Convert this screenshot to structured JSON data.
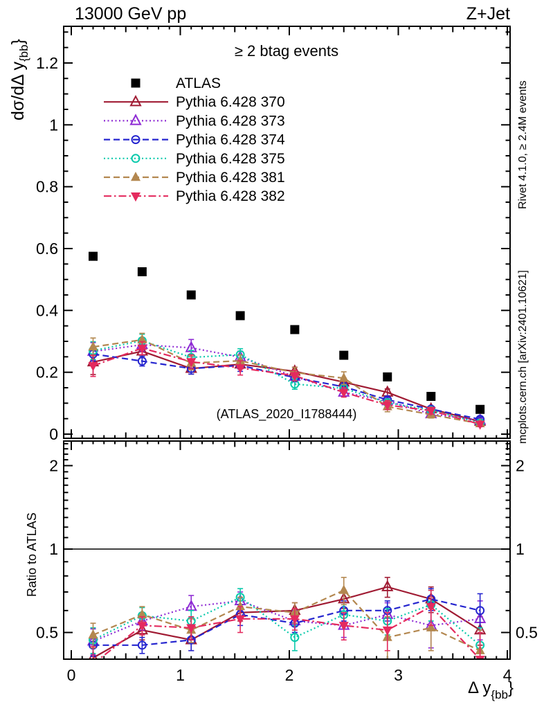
{
  "header": {
    "left_title": "13000 GeV pp",
    "right_title": "Z+Jet"
  },
  "side_notes": {
    "top": "Rivet 4.1.0, ≥ 2.4M events",
    "bottom": "mcplots.cern.ch [arXiv:2401.10621]"
  },
  "watermark": "(ATLAS_2020_I1788444)",
  "panel_labels": {
    "subtitle": "≥ 2 btag events",
    "ylabel_main": "dσ/dΔ y",
    "ylabel_sub": "{bb",
    "ylabel_close": "}",
    "ratio_ylabel": "Ratio to ATLAS",
    "xlabel_main": "Δ y",
    "xlabel_sub": "{bb",
    "xlabel_close": "}"
  },
  "chart_data": {
    "type": "line",
    "title": "≥ 2 btag events",
    "xlabel": "Δ y_{bb}}",
    "ylabel_top": "dσ/dΔ y_{bb}}",
    "ylabel_bottom": "Ratio to ATLAS",
    "x": [
      0.2,
      0.65,
      1.1,
      1.55,
      2.05,
      2.5,
      2.9,
      3.3,
      3.75
    ],
    "x_axis": {
      "range": [
        -0.07,
        4.03
      ],
      "major_ticks": [
        0,
        1,
        2,
        3,
        4
      ],
      "tick_labels": [
        "0",
        "1",
        "2",
        "3",
        "4"
      ],
      "minor_step": 0.1
    },
    "top_panel": {
      "scale": "linear",
      "y_range": [
        -0.013,
        1.32
      ],
      "major_ticks": [
        0,
        0.2,
        0.4,
        0.6,
        0.8,
        1.0,
        1.2
      ],
      "tick_labels": [
        "0",
        "0.2",
        "0.4",
        "0.6",
        "0.8",
        "1",
        "1.2"
      ],
      "minor_step": 0.05,
      "grid": false
    },
    "ratio_panel": {
      "scale": "log",
      "y_range": [
        0.4,
        2.46
      ],
      "major_ticks": [
        0.5,
        1,
        2
      ],
      "tick_labels": [
        "0.5",
        "1",
        "2"
      ],
      "minor_ticks": [
        0.4,
        0.6,
        0.7,
        0.8,
        0.9,
        1.1,
        1.2,
        1.3,
        1.4,
        1.5,
        1.6,
        1.7,
        1.8,
        1.9,
        2.1,
        2.2,
        2.3,
        2.4
      ],
      "ref_line": 1,
      "grid": false
    },
    "atlas": {
      "label": "ATLAS",
      "color": "#000000",
      "marker": "square-filled",
      "values": [
        0.575,
        0.525,
        0.45,
        0.383,
        0.338,
        0.255,
        0.185,
        0.122,
        0.08
      ]
    },
    "series": [
      {
        "label": "Pythia 6.428 370",
        "color": "#a01b33",
        "line": "solid",
        "marker": "triangle-open",
        "values": [
          0.233,
          0.268,
          0.212,
          0.226,
          0.203,
          0.168,
          0.135,
          0.081,
          0.041
        ],
        "ratio": [
          0.405,
          0.51,
          0.47,
          0.59,
          0.6,
          0.66,
          0.73,
          0.66,
          0.51
        ],
        "ratio_err": [
          0.07,
          0.04,
          0.04,
          0.04,
          0.04,
          0.05,
          0.06,
          0.07,
          0.06
        ]
      },
      {
        "label": "Pythia 6.428 373",
        "color": "#8e2bd4",
        "line": "dotted",
        "marker": "triangle-open",
        "values": [
          0.267,
          0.289,
          0.279,
          0.249,
          0.186,
          0.135,
          0.107,
          0.065,
          0.045
        ],
        "ratio": [
          0.465,
          0.55,
          0.62,
          0.65,
          0.55,
          0.53,
          0.58,
          0.53,
          0.56
        ],
        "ratio_err": [
          0.05,
          0.04,
          0.06,
          0.05,
          0.05,
          0.05,
          0.06,
          0.09,
          0.09
        ]
      },
      {
        "label": "Pythia 6.428 374",
        "color": "#2525cf",
        "line": "dashed",
        "marker": "circle-open",
        "values": [
          0.259,
          0.236,
          0.212,
          0.222,
          0.183,
          0.153,
          0.111,
          0.081,
          0.048
        ],
        "ratio": [
          0.45,
          0.45,
          0.47,
          0.58,
          0.54,
          0.6,
          0.6,
          0.66,
          0.6
        ],
        "ratio_err": [
          0.04,
          0.03,
          0.04,
          0.05,
          0.04,
          0.05,
          0.05,
          0.06,
          0.09
        ]
      },
      {
        "label": "Pythia 6.428 375",
        "color": "#09c9ab",
        "line": "dotted",
        "marker": "circle-open",
        "values": [
          0.27,
          0.302,
          0.248,
          0.257,
          0.162,
          0.148,
          0.102,
          0.077,
          0.036
        ],
        "ratio": [
          0.47,
          0.575,
          0.55,
          0.67,
          0.48,
          0.58,
          0.55,
          0.63,
          0.45
        ],
        "ratio_err": [
          0.05,
          0.04,
          0.05,
          0.05,
          0.05,
          0.05,
          0.06,
          0.08,
          0.07
        ]
      },
      {
        "label": "Pythia 6.428 381",
        "color": "#b3874f",
        "line": "dashed",
        "marker": "triangle-filled",
        "values": [
          0.282,
          0.305,
          0.23,
          0.237,
          0.199,
          0.181,
          0.089,
          0.063,
          0.034
        ],
        "ratio": [
          0.49,
          0.58,
          0.51,
          0.62,
          0.59,
          0.71,
          0.48,
          0.52,
          0.43
        ],
        "ratio_err": [
          0.05,
          0.04,
          0.05,
          0.05,
          0.05,
          0.08,
          0.09,
          0.09,
          0.08
        ]
      },
      {
        "label": "Pythia 6.428 382",
        "color": "#e42a5e",
        "line": "dashdot",
        "marker": "triangle-down-filled",
        "values": [
          0.221,
          0.278,
          0.234,
          0.214,
          0.189,
          0.135,
          0.094,
          0.076,
          0.032
        ],
        "ratio": [
          0.385,
          0.53,
          0.52,
          0.56,
          0.56,
          0.53,
          0.51,
          0.62,
          0.4
        ],
        "ratio_err": [
          0.06,
          0.04,
          0.05,
          0.06,
          0.05,
          0.06,
          0.08,
          0.09,
          0.1
        ]
      }
    ],
    "legend_position": "top-left",
    "colors": {
      "frame": "#000000",
      "note_gray": "#808080",
      "watermark_gray": "#b9b9b9"
    }
  }
}
